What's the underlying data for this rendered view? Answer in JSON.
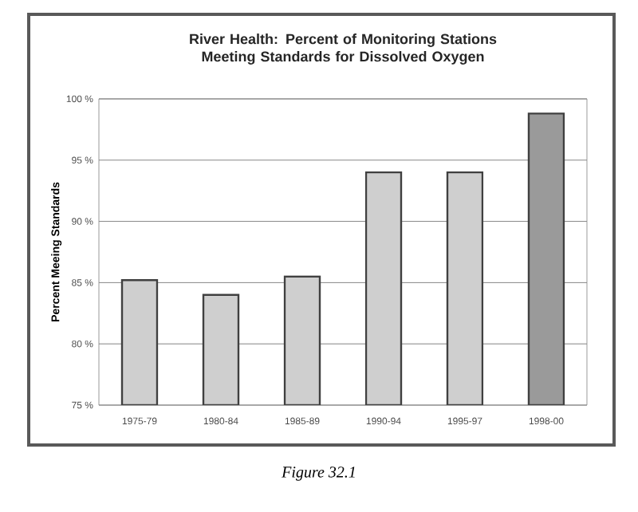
{
  "chart_data": {
    "type": "bar",
    "title": "River Health: Percent of Monitoring Stations Meeting Standards for Dissolved Oxygen",
    "ylabel": "Percent Meeing Standards",
    "categories": [
      "1975-79",
      "1980-84",
      "1985-89",
      "1990-94",
      "1995-97",
      "1998-00"
    ],
    "values": [
      85.2,
      84.0,
      85.5,
      94.0,
      94.0,
      98.8
    ],
    "colors": [
      "#cfcfcf",
      "#cfcfcf",
      "#cfcfcf",
      "#cfcfcf",
      "#cfcfcf",
      "#9a9a9a"
    ],
    "ylim": [
      75,
      100
    ],
    "yticks": [
      {
        "value": 75,
        "label": "75 %"
      },
      {
        "value": 80,
        "label": "80 %"
      },
      {
        "value": 85,
        "label": "85 %"
      },
      {
        "value": 90,
        "label": "90 %"
      },
      {
        "value": 95,
        "label": "95 %"
      },
      {
        "value": 100,
        "label": "100 %"
      }
    ],
    "grid": "y",
    "annotations": [
      "Figure 32.1"
    ]
  }
}
